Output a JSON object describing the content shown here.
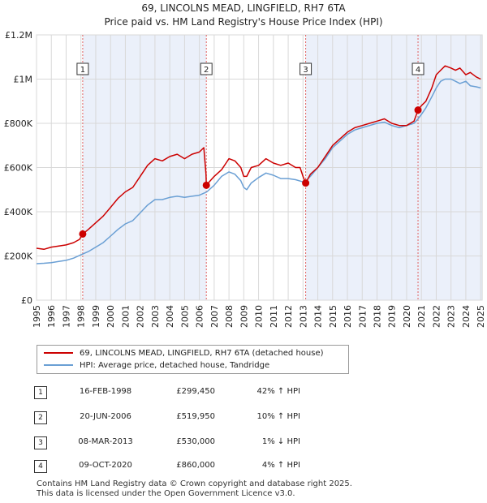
{
  "header": {
    "title": "69, LINCOLNS MEAD, LINGFIELD, RH7 6TA",
    "subtitle": "Price paid vs. HM Land Registry's House Price Index (HPI)"
  },
  "chart_data": {
    "type": "line",
    "title": "69, LINCOLNS MEAD, LINGFIELD, RH7 6TA",
    "subtitle": "Price paid vs. HM Land Registry's House Price Index (HPI)",
    "xlabel": "",
    "ylabel": "",
    "xlim": [
      1995,
      2025.1
    ],
    "ylim": [
      0,
      1200000
    ],
    "y_ticks": [
      0,
      200000,
      400000,
      600000,
      800000,
      1000000,
      1200000
    ],
    "y_tick_labels": [
      "£0",
      "£200K",
      "£400K",
      "£600K",
      "£800K",
      "£1M",
      "£1.2M"
    ],
    "x_ticks": [
      "1995",
      "1996",
      "1997",
      "1998",
      "1999",
      "2000",
      "2001",
      "2002",
      "2003",
      "2004",
      "2005",
      "2006",
      "2007",
      "2008",
      "2009",
      "2010",
      "2011",
      "2012",
      "2013",
      "2014",
      "2015",
      "2016",
      "2017",
      "2018",
      "2019",
      "2020",
      "2021",
      "2022",
      "2023",
      "2024",
      "2025"
    ],
    "grid": true,
    "series": [
      {
        "name": "69, LINCOLNS MEAD, LINGFIELD, RH7 6TA (detached house)",
        "color": "#cc0000",
        "x": [
          1995.0,
          1995.5,
          1996.0,
          1996.5,
          1997.0,
          1997.5,
          1997.9,
          1998.12,
          1998.5,
          1999.0,
          1999.5,
          2000.0,
          2000.5,
          2001.0,
          2001.5,
          2002.0,
          2002.5,
          2003.0,
          2003.5,
          2004.0,
          2004.5,
          2005.0,
          2005.5,
          2006.0,
          2006.3,
          2006.45,
          2006.47,
          2007.0,
          2007.5,
          2007.8,
          2008.0,
          2008.4,
          2008.8,
          2009.0,
          2009.2,
          2009.5,
          2010.0,
          2010.5,
          2011.0,
          2011.5,
          2012.0,
          2012.5,
          2012.8,
          2013.0,
          2013.18,
          2013.5,
          2014.0,
          2014.5,
          2015.0,
          2015.5,
          2016.0,
          2016.5,
          2017.0,
          2017.5,
          2018.0,
          2018.5,
          2019.0,
          2019.5,
          2020.0,
          2020.5,
          2020.77,
          2021.0,
          2021.3,
          2021.7,
          2022.0,
          2022.3,
          2022.6,
          2023.0,
          2023.3,
          2023.6,
          2024.0,
          2024.3,
          2024.7,
          2025.0
        ],
        "values": [
          235000,
          230000,
          240000,
          245000,
          250000,
          260000,
          275000,
          299450,
          320000,
          350000,
          380000,
          420000,
          460000,
          490000,
          510000,
          560000,
          610000,
          640000,
          630000,
          650000,
          660000,
          640000,
          660000,
          670000,
          690000,
          570000,
          519950,
          560000,
          590000,
          620000,
          640000,
          630000,
          600000,
          560000,
          560000,
          600000,
          610000,
          640000,
          620000,
          610000,
          620000,
          600000,
          600000,
          560000,
          530000,
          570000,
          600000,
          650000,
          700000,
          730000,
          760000,
          780000,
          790000,
          800000,
          810000,
          820000,
          800000,
          790000,
          790000,
          810000,
          860000,
          880000,
          900000,
          960000,
          1020000,
          1040000,
          1060000,
          1050000,
          1040000,
          1050000,
          1020000,
          1030000,
          1010000,
          1000000
        ]
      },
      {
        "name": "HPI: Average price, detached house, Tandridge",
        "color": "#6a9fd4",
        "x": [
          1995.0,
          1995.5,
          1996.0,
          1996.5,
          1997.0,
          1997.5,
          1998.0,
          1998.5,
          1999.0,
          1999.5,
          2000.0,
          2000.5,
          2001.0,
          2001.5,
          2002.0,
          2002.5,
          2003.0,
          2003.5,
          2004.0,
          2004.5,
          2005.0,
          2005.5,
          2006.0,
          2006.5,
          2007.0,
          2007.5,
          2008.0,
          2008.4,
          2008.8,
          2009.0,
          2009.2,
          2009.5,
          2010.0,
          2010.5,
          2011.0,
          2011.5,
          2012.0,
          2012.5,
          2013.0,
          2013.2,
          2013.5,
          2014.0,
          2014.5,
          2015.0,
          2015.5,
          2016.0,
          2016.5,
          2017.0,
          2017.5,
          2018.0,
          2018.5,
          2019.0,
          2019.5,
          2020.0,
          2020.5,
          2020.77,
          2021.0,
          2021.3,
          2021.7,
          2022.0,
          2022.3,
          2022.6,
          2023.0,
          2023.3,
          2023.6,
          2024.0,
          2024.3,
          2024.7,
          2025.0
        ],
        "values": [
          165000,
          167000,
          170000,
          175000,
          180000,
          190000,
          205000,
          220000,
          240000,
          260000,
          290000,
          320000,
          345000,
          360000,
          395000,
          430000,
          455000,
          455000,
          465000,
          470000,
          465000,
          470000,
          475000,
          490000,
          520000,
          560000,
          580000,
          570000,
          540000,
          510000,
          500000,
          530000,
          555000,
          575000,
          565000,
          550000,
          550000,
          545000,
          535000,
          540000,
          560000,
          600000,
          640000,
          690000,
          720000,
          750000,
          770000,
          780000,
          790000,
          800000,
          805000,
          790000,
          780000,
          790000,
          800000,
          820000,
          840000,
          870000,
          920000,
          960000,
          990000,
          1000000,
          1000000,
          990000,
          980000,
          990000,
          970000,
          965000,
          960000
        ]
      }
    ],
    "transactions": [
      {
        "id": "1",
        "year": 1998.12,
        "price": 299450,
        "date": "16-FEB-1998",
        "price_label": "£299,450",
        "hpi_label": "42% ↑ HPI"
      },
      {
        "id": "2",
        "year": 2006.47,
        "price": 519950,
        "date": "20-JUN-2006",
        "price_label": "£519,950",
        "hpi_label": "10% ↑ HPI"
      },
      {
        "id": "3",
        "year": 2013.18,
        "price": 530000,
        "date": "08-MAR-2013",
        "price_label": "£530,000",
        "hpi_label": "1% ↓ HPI"
      },
      {
        "id": "4",
        "year": 2020.77,
        "price": 860000,
        "date": "09-OCT-2020",
        "price_label": "£860,000",
        "hpi_label": "4% ↑ HPI"
      }
    ],
    "legend_position": "below"
  },
  "legend": {
    "property_label": "69, LINCOLNS MEAD, LINGFIELD, RH7 6TA (detached house)",
    "hpi_label": "HPI: Average price, detached house, Tandridge"
  },
  "footer": {
    "line1": "Contains HM Land Registry data © Crown copyright and database right 2025.",
    "line2": "This data is licensed under the Open Government Licence v3.0."
  }
}
